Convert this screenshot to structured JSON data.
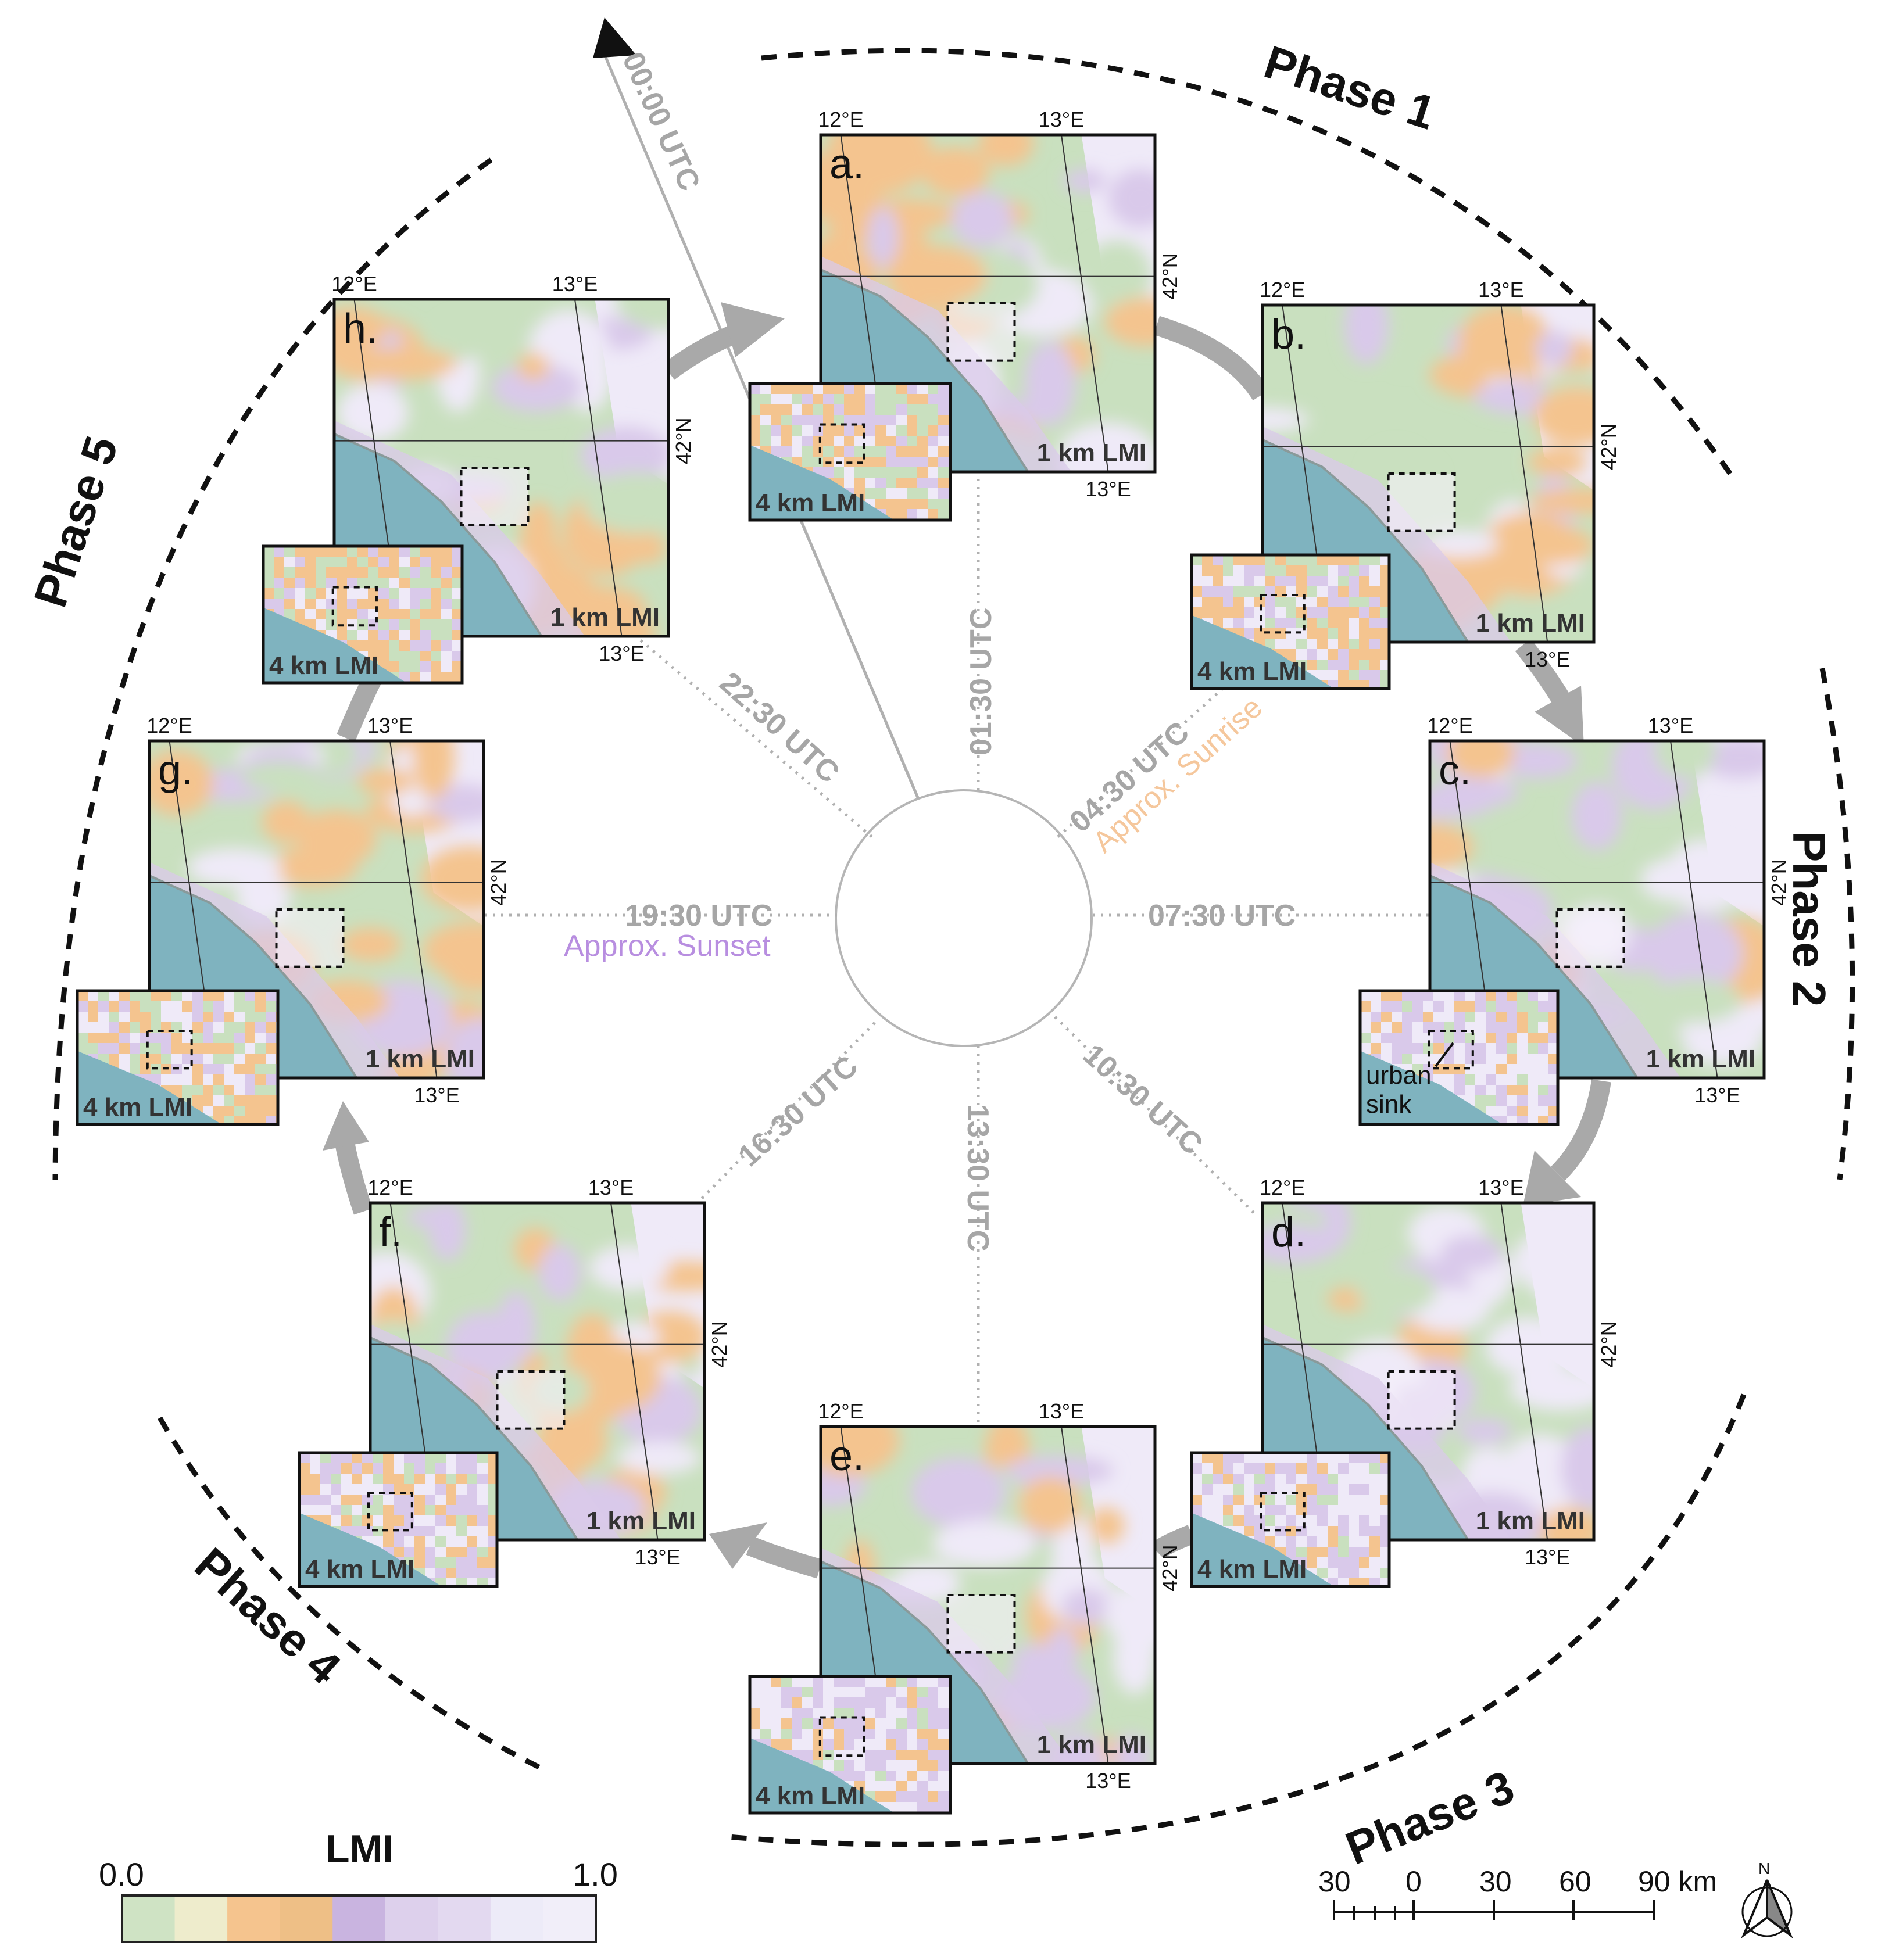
{
  "phases": [
    "Phase 1",
    "Phase 2",
    "Phase 3",
    "Phase 4",
    "Phase 5"
  ],
  "time_labels": {
    "t0000": "00:00 UTC",
    "t0130": "01:30 UTC",
    "t0430": "04:30 UTC",
    "sunrise": "Approx. Sunrise",
    "t0730": "07:30 UTC",
    "t1030": "10:30 UTC",
    "t1330": "13:30 UTC",
    "t1630": "16:30 UTC",
    "t1930": "19:30 UTC",
    "sunset": "Approx. Sunset",
    "t2230": "22:30 UTC"
  },
  "panels": [
    {
      "letter": "a.",
      "main_label": "1 km LMI",
      "inset_label": "4 km LMI"
    },
    {
      "letter": "b.",
      "main_label": "1 km LMI",
      "inset_label": "4 km LMI"
    },
    {
      "letter": "c.",
      "main_label": "1 km LMI",
      "inset_label": "urban sink"
    },
    {
      "letter": "d.",
      "main_label": "1 km LMI",
      "inset_label": "4 km LMI"
    },
    {
      "letter": "e.",
      "main_label": "1 km LMI",
      "inset_label": "4 km LMI"
    },
    {
      "letter": "f.",
      "main_label": "1 km LMI",
      "inset_label": "4 km LMI"
    },
    {
      "letter": "g.",
      "main_label": "1 km LMI",
      "inset_label": "4 km LMI"
    },
    {
      "letter": "h.",
      "main_label": "1 km LMI",
      "inset_label": "4 km LMI"
    }
  ],
  "coords": {
    "lon_w": "12°E",
    "lon_e": "13°E",
    "lat": "42°N"
  },
  "urban_sink": [
    "urban",
    "sink"
  ],
  "legend": {
    "title": "LMI",
    "min": "0.0",
    "max": "1.0",
    "colors": [
      "#cfe3c4",
      "#eeeccc",
      "#f5c48e",
      "#eebf86",
      "#c9b4e0",
      "#ddd0ec",
      "#e3d9f0",
      "#edebf8",
      "#f1eef9"
    ]
  },
  "scale_bar": {
    "labels": [
      "30",
      "0",
      "30",
      "60",
      "90 km"
    ]
  },
  "north_arrow": {
    "label": "N"
  },
  "colors": {
    "sea": "#7fb3bf",
    "green": "#c9e0bf",
    "orange": "#f4c48f",
    "purple": "#d9c9ea",
    "light": "#efeaf8",
    "arrow": "#a9a9a9",
    "time_gray": "#a6a6a6",
    "sunrise": "#f5c79c",
    "sunset": "#b88ee0"
  }
}
